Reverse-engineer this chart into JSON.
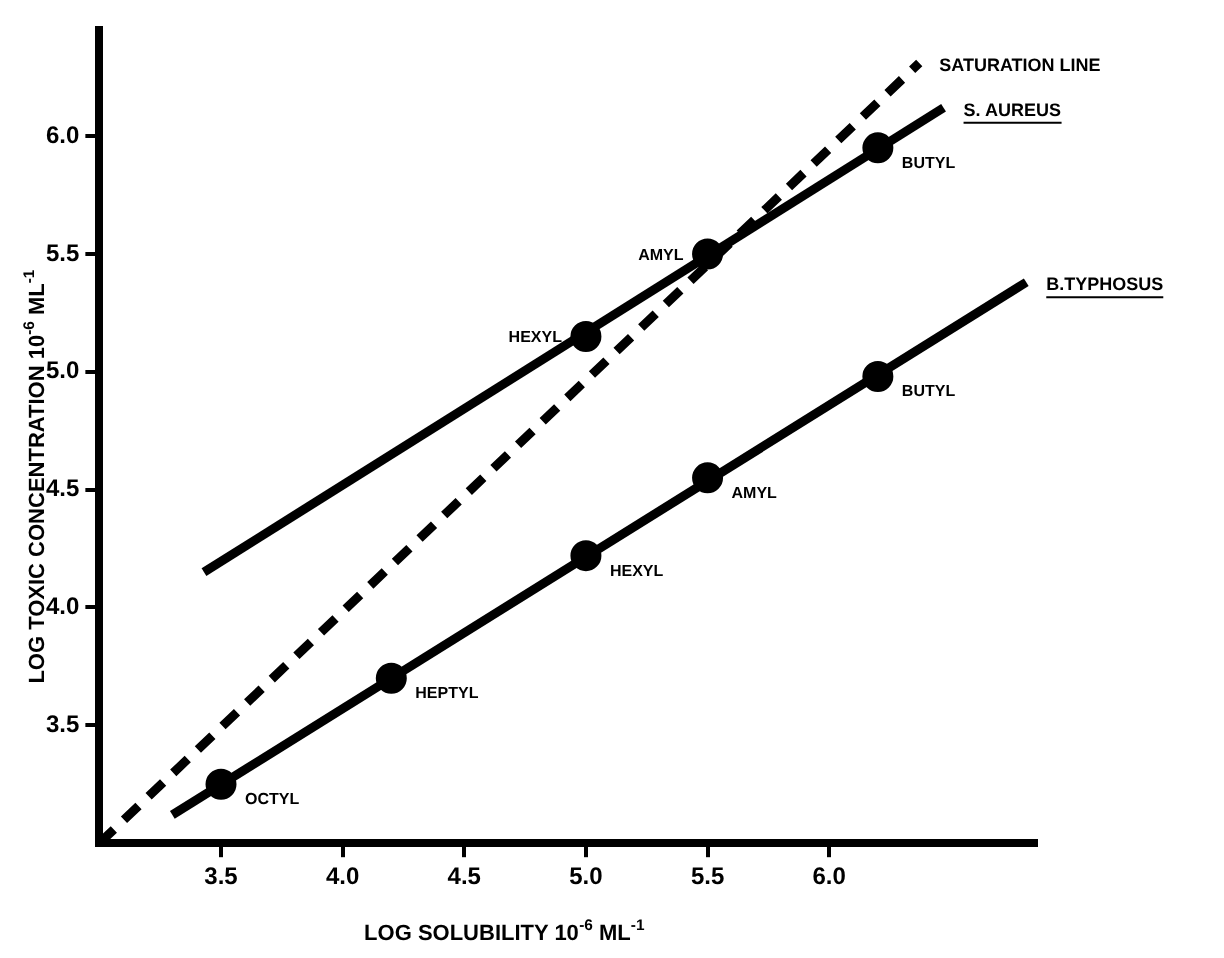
{
  "chart_data": {
    "type": "line",
    "xlabel": "LOG SOLUBILITY 10$^{-6}$ ML$^{-1}$",
    "ylabel": "LOG TOXIC CONCENTRATION 10$^{-6}$ ML$^{-1}$",
    "xlim": [
      3.0,
      6.85
    ],
    "ylim": [
      3.0,
      6.45
    ],
    "xticks": [
      3.5,
      {
        "value": 4,
        "label": "4.0"
      },
      4.5,
      {
        "value": 5,
        "label": "5.0"
      },
      5.5,
      {
        "value": 6,
        "label": "6.0"
      }
    ],
    "yticks": [
      3.5,
      {
        "value": 4,
        "label": "4.0"
      },
      4.5,
      {
        "value": 5,
        "label": "5.0"
      },
      5.5,
      {
        "value": 6,
        "label": "6.0"
      }
    ],
    "series": [
      {
        "name": "SATURATION LINE",
        "type": "line",
        "line_style": "dashed",
        "marker": "none",
        "color": "#000000",
        "x": [
          3.0,
          6.37
        ],
        "values": [
          3.0,
          6.31
        ]
      },
      {
        "name": "S. AUREUS",
        "type": "line",
        "marker": "none",
        "color": "#000000",
        "x": [
          3.43,
          6.47
        ],
        "values": [
          4.15,
          6.12
        ]
      },
      {
        "name": "B.TYPHOSUS",
        "type": "line",
        "marker": "none",
        "color": "#000000",
        "x": [
          3.3,
          6.81
        ],
        "values": [
          3.12,
          5.38
        ]
      },
      {
        "type": "scatter",
        "marker": "circle",
        "color": "#000000",
        "x": [
          5.0,
          5.5,
          6.2
        ],
        "values": [
          5.15,
          5.5,
          5.95
        ],
        "value_labels": [
          "HEXYL",
          "AMYL",
          "BUTYL"
        ]
      },
      {
        "type": "scatter",
        "marker": "circle",
        "color": "#000000",
        "x": [
          3.5,
          4.2,
          5.0,
          5.5,
          6.2
        ],
        "values": [
          3.25,
          3.7,
          4.22,
          4.55,
          4.98
        ],
        "value_labels": [
          "OCTYL",
          "HEPTYL",
          "HEXYL",
          "AMYL",
          "BUTYL"
        ]
      }
    ]
  }
}
